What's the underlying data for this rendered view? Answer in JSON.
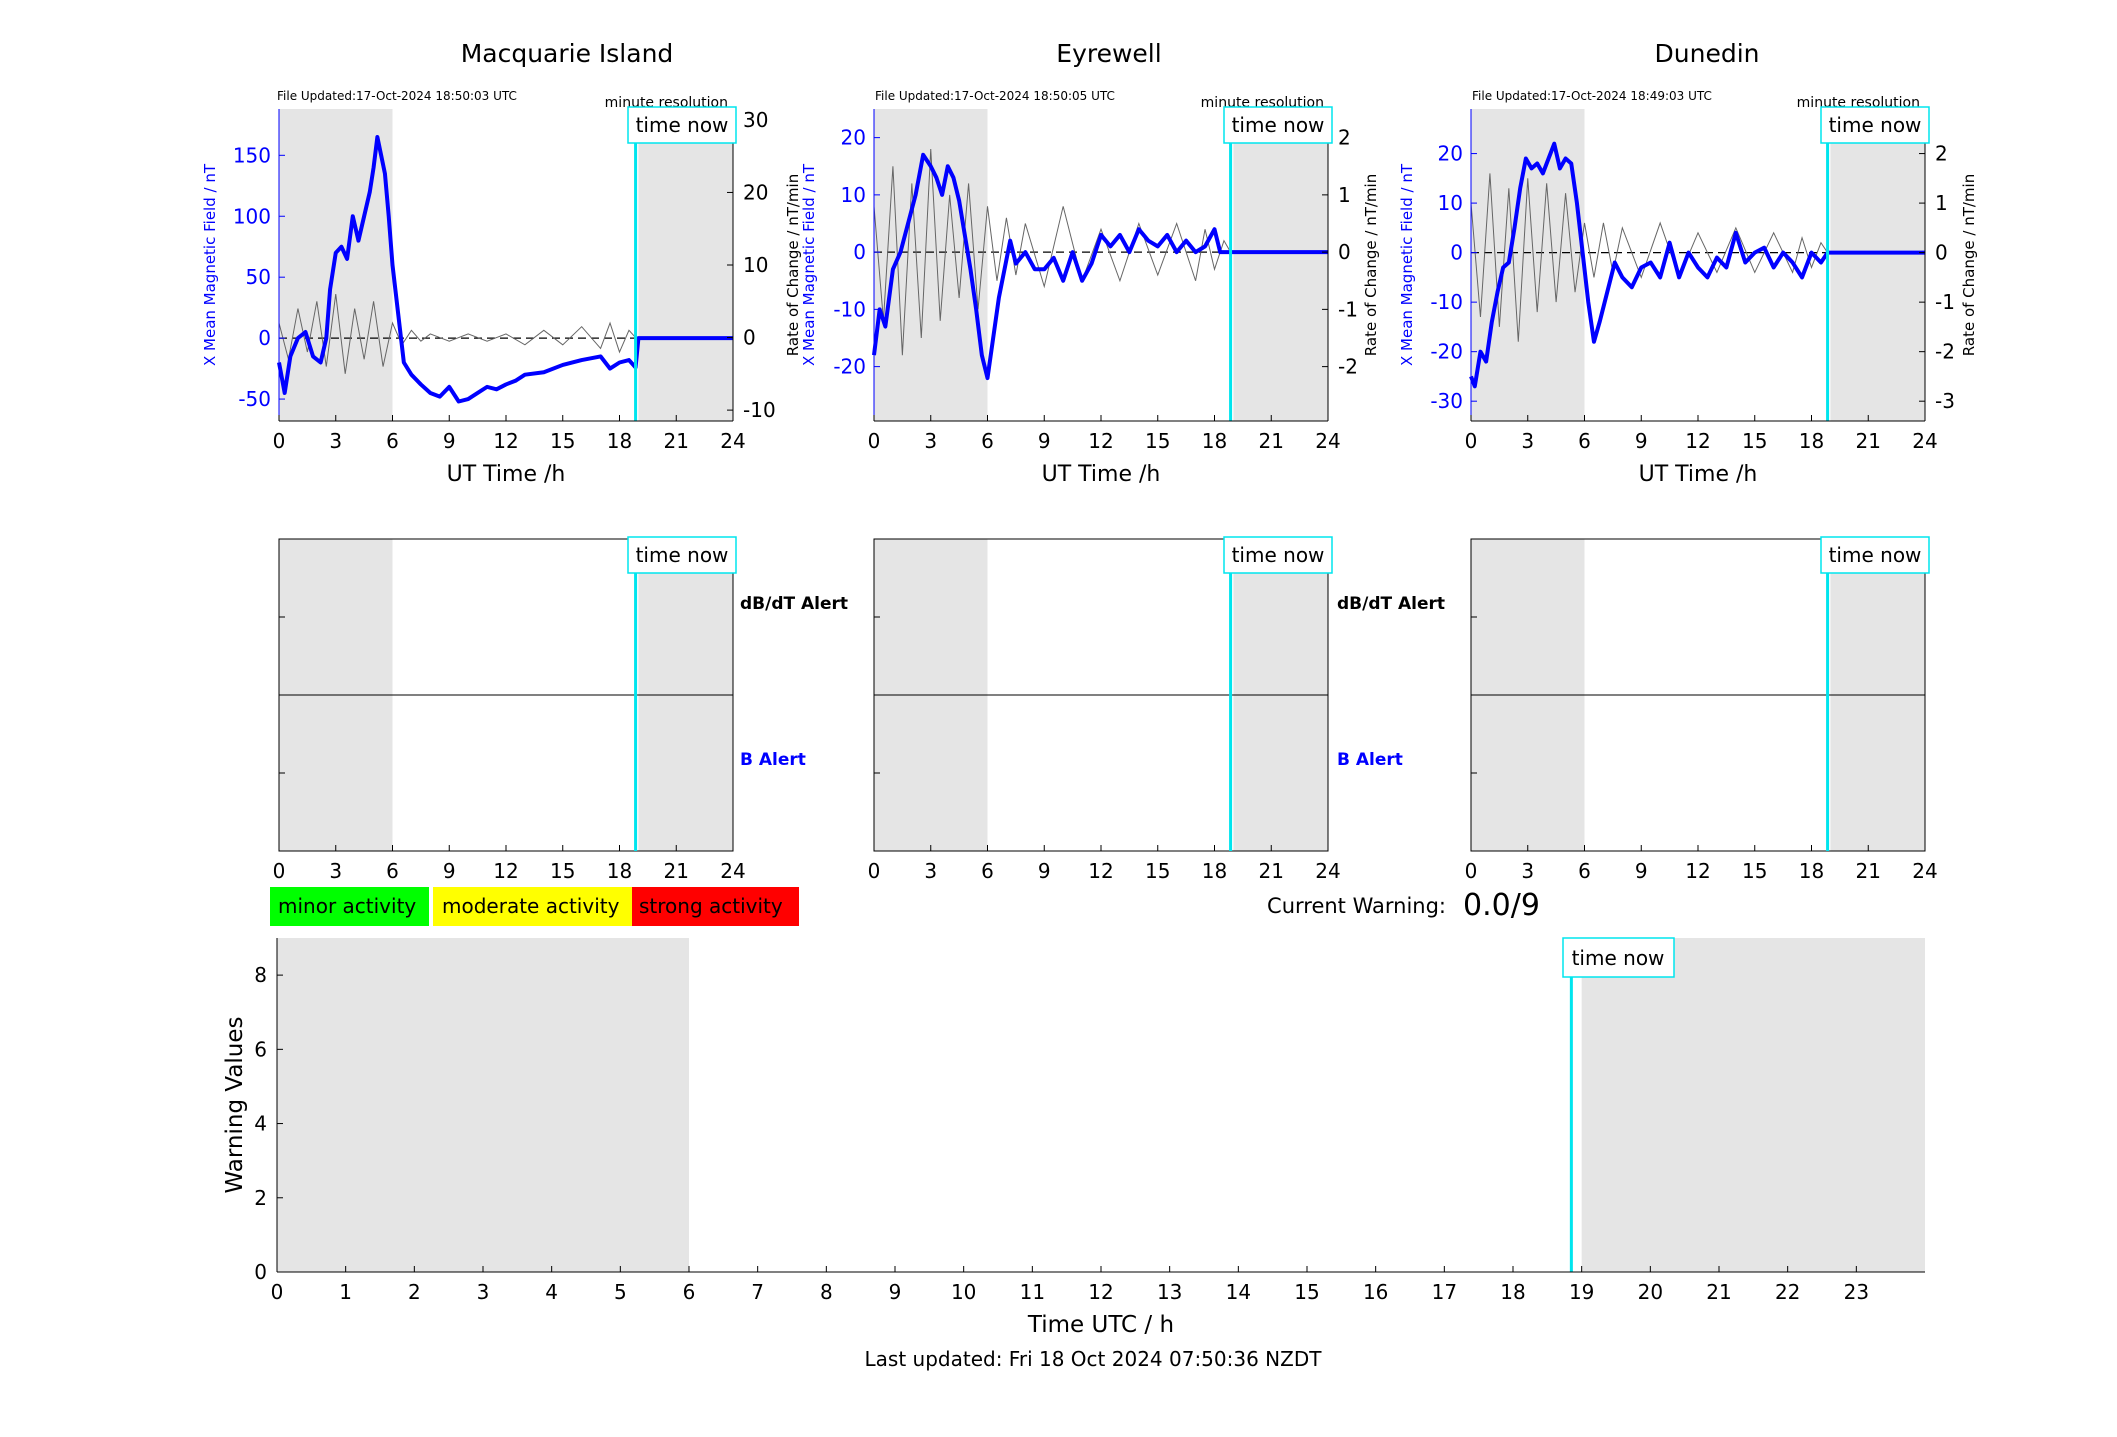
{
  "footer": {
    "last_updated": "Last updated: Fri 18 Oct 2024 07:50:36 NZDT"
  },
  "legend": {
    "minor": "minor activity",
    "moderate": "moderate activity",
    "strong": "strong activity",
    "colors": {
      "minor": "#00ff00",
      "moderate": "#ffff00",
      "strong": "#ff0000"
    }
  },
  "current_warning": {
    "label": "Current Warning:",
    "value": "0.0/9"
  },
  "labels": {
    "time_now": "time now",
    "minute_resolution": "minute resolution",
    "x_axis_top": "UT Time /h",
    "y_left": "X Mean Magnetic Field / nT",
    "y_right": "Rate of Change / nT/min",
    "dbdt_alert": "dB/dT Alert",
    "b_alert": "B Alert",
    "warning_ylabel": "Warning Values",
    "warning_xlabel": "Time UTC / h"
  },
  "colors": {
    "field": "#0000ff",
    "rate": "#666666",
    "time_now": "#00e5ee",
    "shade": "#e5e5e5"
  },
  "chart_data": [
    {
      "type": "line",
      "title": "Macquarie Island",
      "file_updated": "File Updated:17-Oct-2024 18:50:03 UTC",
      "xlabel": "UT Time /h",
      "ylabel": "X Mean Magnetic Field / nT",
      "ylabel_right": "Rate of Change / nT/min",
      "xlim": [
        0,
        24
      ],
      "xticks": [
        0,
        3,
        6,
        9,
        12,
        15,
        18,
        21,
        24
      ],
      "ylim": [
        -68,
        188
      ],
      "yticks": [
        -50,
        0,
        50,
        100,
        150
      ],
      "ylim_right": [
        -11.5,
        31.5
      ],
      "yticks_right": [
        -10,
        0,
        10,
        20,
        30
      ],
      "shaded_x": [
        [
          0,
          6
        ],
        [
          19,
          24
        ]
      ],
      "time_now": 18.85,
      "series": [
        {
          "name": "X Mean Magnetic Field",
          "x": [
            0,
            0.3,
            0.6,
            1.0,
            1.4,
            1.8,
            2.2,
            2.5,
            2.7,
            3.0,
            3.3,
            3.6,
            3.9,
            4.2,
            4.5,
            4.8,
            5.0,
            5.2,
            5.4,
            5.6,
            5.8,
            6.0,
            6.3,
            6.6,
            7.0,
            7.5,
            8.0,
            8.5,
            9.0,
            9.5,
            10.0,
            10.5,
            11.0,
            11.5,
            12.0,
            12.5,
            13.0,
            14.0,
            15.0,
            16.0,
            17.0,
            17.5,
            18.0,
            18.5,
            18.85,
            19.0,
            24
          ],
          "values": [
            -20,
            -45,
            -15,
            0,
            5,
            -15,
            -20,
            0,
            40,
            70,
            75,
            65,
            100,
            80,
            100,
            120,
            140,
            165,
            150,
            135,
            100,
            60,
            20,
            -20,
            -30,
            -38,
            -45,
            -48,
            -40,
            -52,
            -50,
            -45,
            -40,
            -42,
            -38,
            -35,
            -30,
            -28,
            -22,
            -18,
            -15,
            -25,
            -20,
            -18,
            -24,
            0,
            0
          ]
        },
        {
          "name": "Rate of Change",
          "x": [
            0,
            0.5,
            1,
            1.5,
            2,
            2.5,
            3,
            3.5,
            4,
            4.5,
            5,
            5.5,
            6,
            6.5,
            7,
            7.5,
            8,
            9,
            10,
            11,
            12,
            13,
            14,
            15,
            16,
            17,
            17.5,
            18,
            18.5,
            18.85,
            19,
            24
          ],
          "values": [
            2,
            -3,
            4,
            -2,
            5,
            -4,
            6,
            -5,
            4,
            -3,
            5,
            -4,
            2,
            -1,
            1,
            -0.5,
            0.5,
            -0.5,
            0.5,
            -0.5,
            0.5,
            -1,
            1,
            -1,
            1.5,
            -1.5,
            2,
            -2,
            1,
            0,
            0,
            0
          ]
        }
      ]
    },
    {
      "type": "line",
      "title": "Eyrewell",
      "file_updated": "File Updated:17-Oct-2024 18:50:05 UTC",
      "xlabel": "UT Time /h",
      "ylabel": "X Mean Magnetic Field / nT",
      "ylabel_right": "Rate of Change / nT/min",
      "xlim": [
        0,
        24
      ],
      "xticks": [
        0,
        3,
        6,
        9,
        12,
        15,
        18,
        21,
        24
      ],
      "ylim": [
        -29.5,
        25
      ],
      "yticks": [
        -20,
        -10,
        0,
        10,
        20
      ],
      "ylim_right": [
        -2.95,
        2.5
      ],
      "yticks_right": [
        -2,
        -1,
        0,
        1,
        2
      ],
      "shaded_x": [
        [
          0,
          6
        ],
        [
          19,
          24
        ]
      ],
      "time_now": 18.85,
      "series": [
        {
          "name": "X Mean Magnetic Field",
          "x": [
            0,
            0.3,
            0.6,
            1.0,
            1.4,
            1.8,
            2.2,
            2.6,
            3.0,
            3.3,
            3.6,
            3.9,
            4.2,
            4.5,
            4.8,
            5.1,
            5.4,
            5.7,
            6.0,
            6.3,
            6.6,
            6.9,
            7.2,
            7.5,
            8.0,
            8.5,
            9.0,
            9.5,
            10.0,
            10.5,
            11.0,
            11.5,
            12.0,
            12.5,
            13.0,
            13.5,
            14.0,
            14.5,
            15.0,
            15.5,
            16.0,
            16.5,
            17.0,
            17.5,
            18.0,
            18.3,
            18.85,
            19.0,
            24
          ],
          "values": [
            -18,
            -10,
            -13,
            -3,
            0,
            5,
            10,
            17,
            15,
            13,
            10,
            15,
            13,
            9,
            3,
            -3,
            -10,
            -18,
            -22,
            -15,
            -8,
            -3,
            2,
            -2,
            0,
            -3,
            -3,
            -1,
            -5,
            0,
            -5,
            -2,
            3,
            1,
            3,
            0,
            4,
            2,
            1,
            3,
            0,
            2,
            0,
            1,
            4,
            0,
            0,
            0,
            0
          ]
        },
        {
          "name": "Rate of Change",
          "x": [
            0,
            0.5,
            1,
            1.5,
            2,
            2.5,
            3,
            3.5,
            4,
            4.5,
            5,
            5.5,
            6,
            6.5,
            7,
            7.5,
            8,
            9,
            10,
            11,
            12,
            13,
            14,
            15,
            16,
            17,
            17.5,
            18,
            18.5,
            18.85,
            19,
            24
          ],
          "values": [
            0.8,
            -1.2,
            1.5,
            -1.8,
            1.2,
            -1.5,
            1.8,
            -1.2,
            1,
            -0.8,
            1.2,
            -1,
            0.8,
            -0.5,
            0.6,
            -0.4,
            0.5,
            -0.6,
            0.8,
            -0.5,
            0.4,
            -0.5,
            0.5,
            -0.4,
            0.5,
            -0.5,
            0.4,
            -0.3,
            0.2,
            0,
            0,
            0
          ]
        }
      ]
    },
    {
      "type": "line",
      "title": "Dunedin",
      "file_updated": "File Updated:17-Oct-2024 18:49:03 UTC",
      "xlabel": "UT Time /h",
      "ylabel": "X Mean Magnetic Field / nT",
      "ylabel_right": "Rate of Change / nT/min",
      "xlim": [
        0,
        24
      ],
      "xticks": [
        0,
        3,
        6,
        9,
        12,
        15,
        18,
        21,
        24
      ],
      "ylim": [
        -34,
        29
      ],
      "yticks": [
        -30,
        -20,
        -10,
        0,
        10,
        20
      ],
      "ylim_right": [
        -3.4,
        2.9
      ],
      "yticks_right": [
        -3,
        -2,
        -1,
        0,
        1,
        2
      ],
      "shaded_x": [
        [
          0,
          6
        ],
        [
          19,
          24
        ]
      ],
      "time_now": 18.85,
      "series": [
        {
          "name": "X Mean Magnetic Field",
          "x": [
            0,
            0.2,
            0.5,
            0.8,
            1.1,
            1.4,
            1.7,
            2.0,
            2.3,
            2.6,
            2.9,
            3.2,
            3.5,
            3.8,
            4.1,
            4.4,
            4.7,
            5.0,
            5.3,
            5.6,
            5.9,
            6.2,
            6.5,
            6.8,
            7.2,
            7.6,
            8.0,
            8.5,
            9.0,
            9.5,
            10.0,
            10.5,
            11.0,
            11.5,
            12.0,
            12.5,
            13.0,
            13.5,
            14.0,
            14.5,
            15.0,
            15.5,
            16.0,
            16.5,
            17.0,
            17.5,
            18.0,
            18.5,
            18.85,
            19.0,
            24
          ],
          "values": [
            -25,
            -27,
            -20,
            -22,
            -14,
            -8,
            -3,
            -2,
            5,
            13,
            19,
            17,
            18,
            16,
            19,
            22,
            17,
            19,
            18,
            10,
            0,
            -10,
            -18,
            -14,
            -8,
            -2,
            -5,
            -7,
            -3,
            -2,
            -5,
            2,
            -5,
            0,
            -3,
            -5,
            -1,
            -3,
            4,
            -2,
            0,
            1,
            -3,
            0,
            -2,
            -5,
            0,
            -2,
            0,
            0,
            0
          ]
        },
        {
          "name": "Rate of Change",
          "x": [
            0,
            0.5,
            1,
            1.5,
            2,
            2.5,
            3,
            3.5,
            4,
            4.5,
            5,
            5.5,
            6,
            6.5,
            7,
            7.5,
            8,
            9,
            10,
            11,
            12,
            13,
            14,
            15,
            16,
            17,
            17.5,
            18,
            18.5,
            18.85,
            19,
            24
          ],
          "values": [
            1,
            -1.3,
            1.6,
            -1.5,
            1.3,
            -1.8,
            1.5,
            -1.2,
            1.4,
            -1,
            1.2,
            -0.8,
            0.6,
            -0.5,
            0.6,
            -0.4,
            0.5,
            -0.5,
            0.6,
            -0.5,
            0.4,
            -0.4,
            0.5,
            -0.4,
            0.4,
            -0.4,
            0.3,
            -0.3,
            0.2,
            0,
            0,
            0
          ]
        }
      ]
    },
    {
      "type": "line",
      "title": "",
      "xlabel": "Time UTC / h",
      "ylabel": "Warning Values",
      "xlim": [
        0,
        24
      ],
      "xticks": [
        0,
        1,
        2,
        3,
        4,
        5,
        6,
        7,
        8,
        9,
        10,
        11,
        12,
        13,
        14,
        15,
        16,
        17,
        18,
        19,
        20,
        21,
        22,
        23
      ],
      "ylim": [
        0,
        9
      ],
      "yticks": [
        0,
        2,
        4,
        6,
        8
      ],
      "shaded_x": [
        [
          0,
          6
        ],
        [
          19,
          24
        ]
      ],
      "time_now": 18.85,
      "series": []
    }
  ]
}
